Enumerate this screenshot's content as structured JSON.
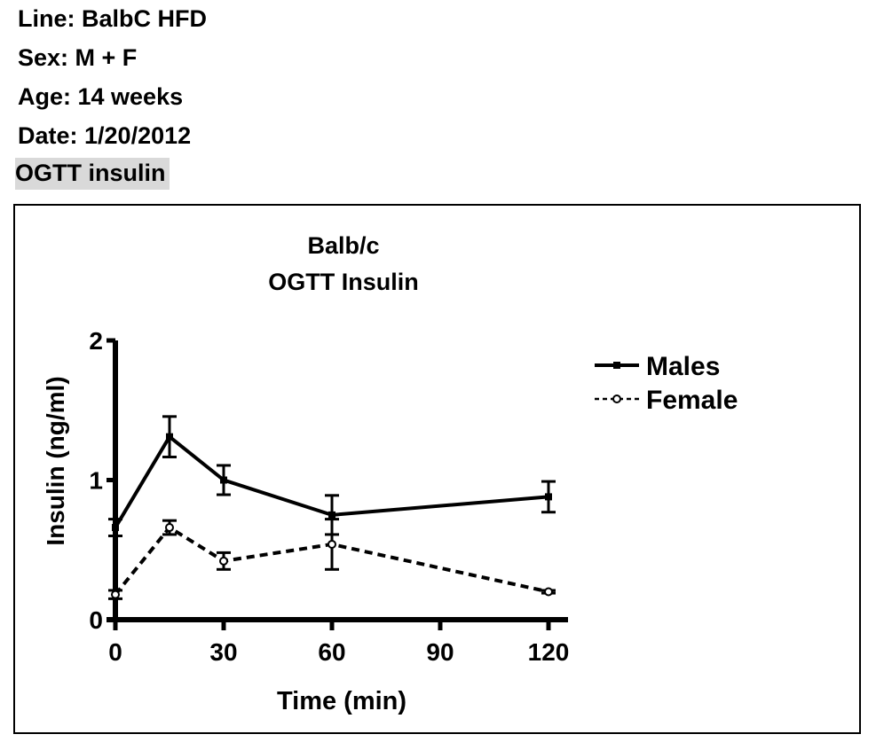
{
  "header": {
    "line": "Line: BalbC HFD",
    "sex": "Sex: M + F",
    "age": "Age: 14 weeks",
    "date": "Date: 1/20/2012",
    "label": "OGTT insulin"
  },
  "chart_data": {
    "type": "line",
    "title": [
      "Balb/c",
      "OGTT Insulin"
    ],
    "xlabel": "Time (min)",
    "ylabel": "Insulin (ng/ml)",
    "xlim": [
      0,
      120
    ],
    "ylim": [
      0,
      2
    ],
    "xticks": [
      "0",
      "30",
      "60",
      "90",
      "120"
    ],
    "yticks": [
      "0",
      "1",
      "2"
    ],
    "legend_position": "right",
    "x": [
      0,
      15,
      30,
      60,
      120
    ],
    "series": [
      {
        "name": "Males",
        "style": "solid",
        "marker": "square",
        "values": [
          0.66,
          1.31,
          1.0,
          0.75,
          0.88
        ],
        "errors": [
          0.06,
          0.145,
          0.105,
          0.14,
          0.11
        ]
      },
      {
        "name": "Female",
        "style": "dashed",
        "marker": "circle",
        "values": [
          0.18,
          0.66,
          0.42,
          0.54,
          0.2
        ],
        "errors": [
          0.03,
          0.05,
          0.06,
          0.18,
          0.01
        ]
      }
    ]
  }
}
